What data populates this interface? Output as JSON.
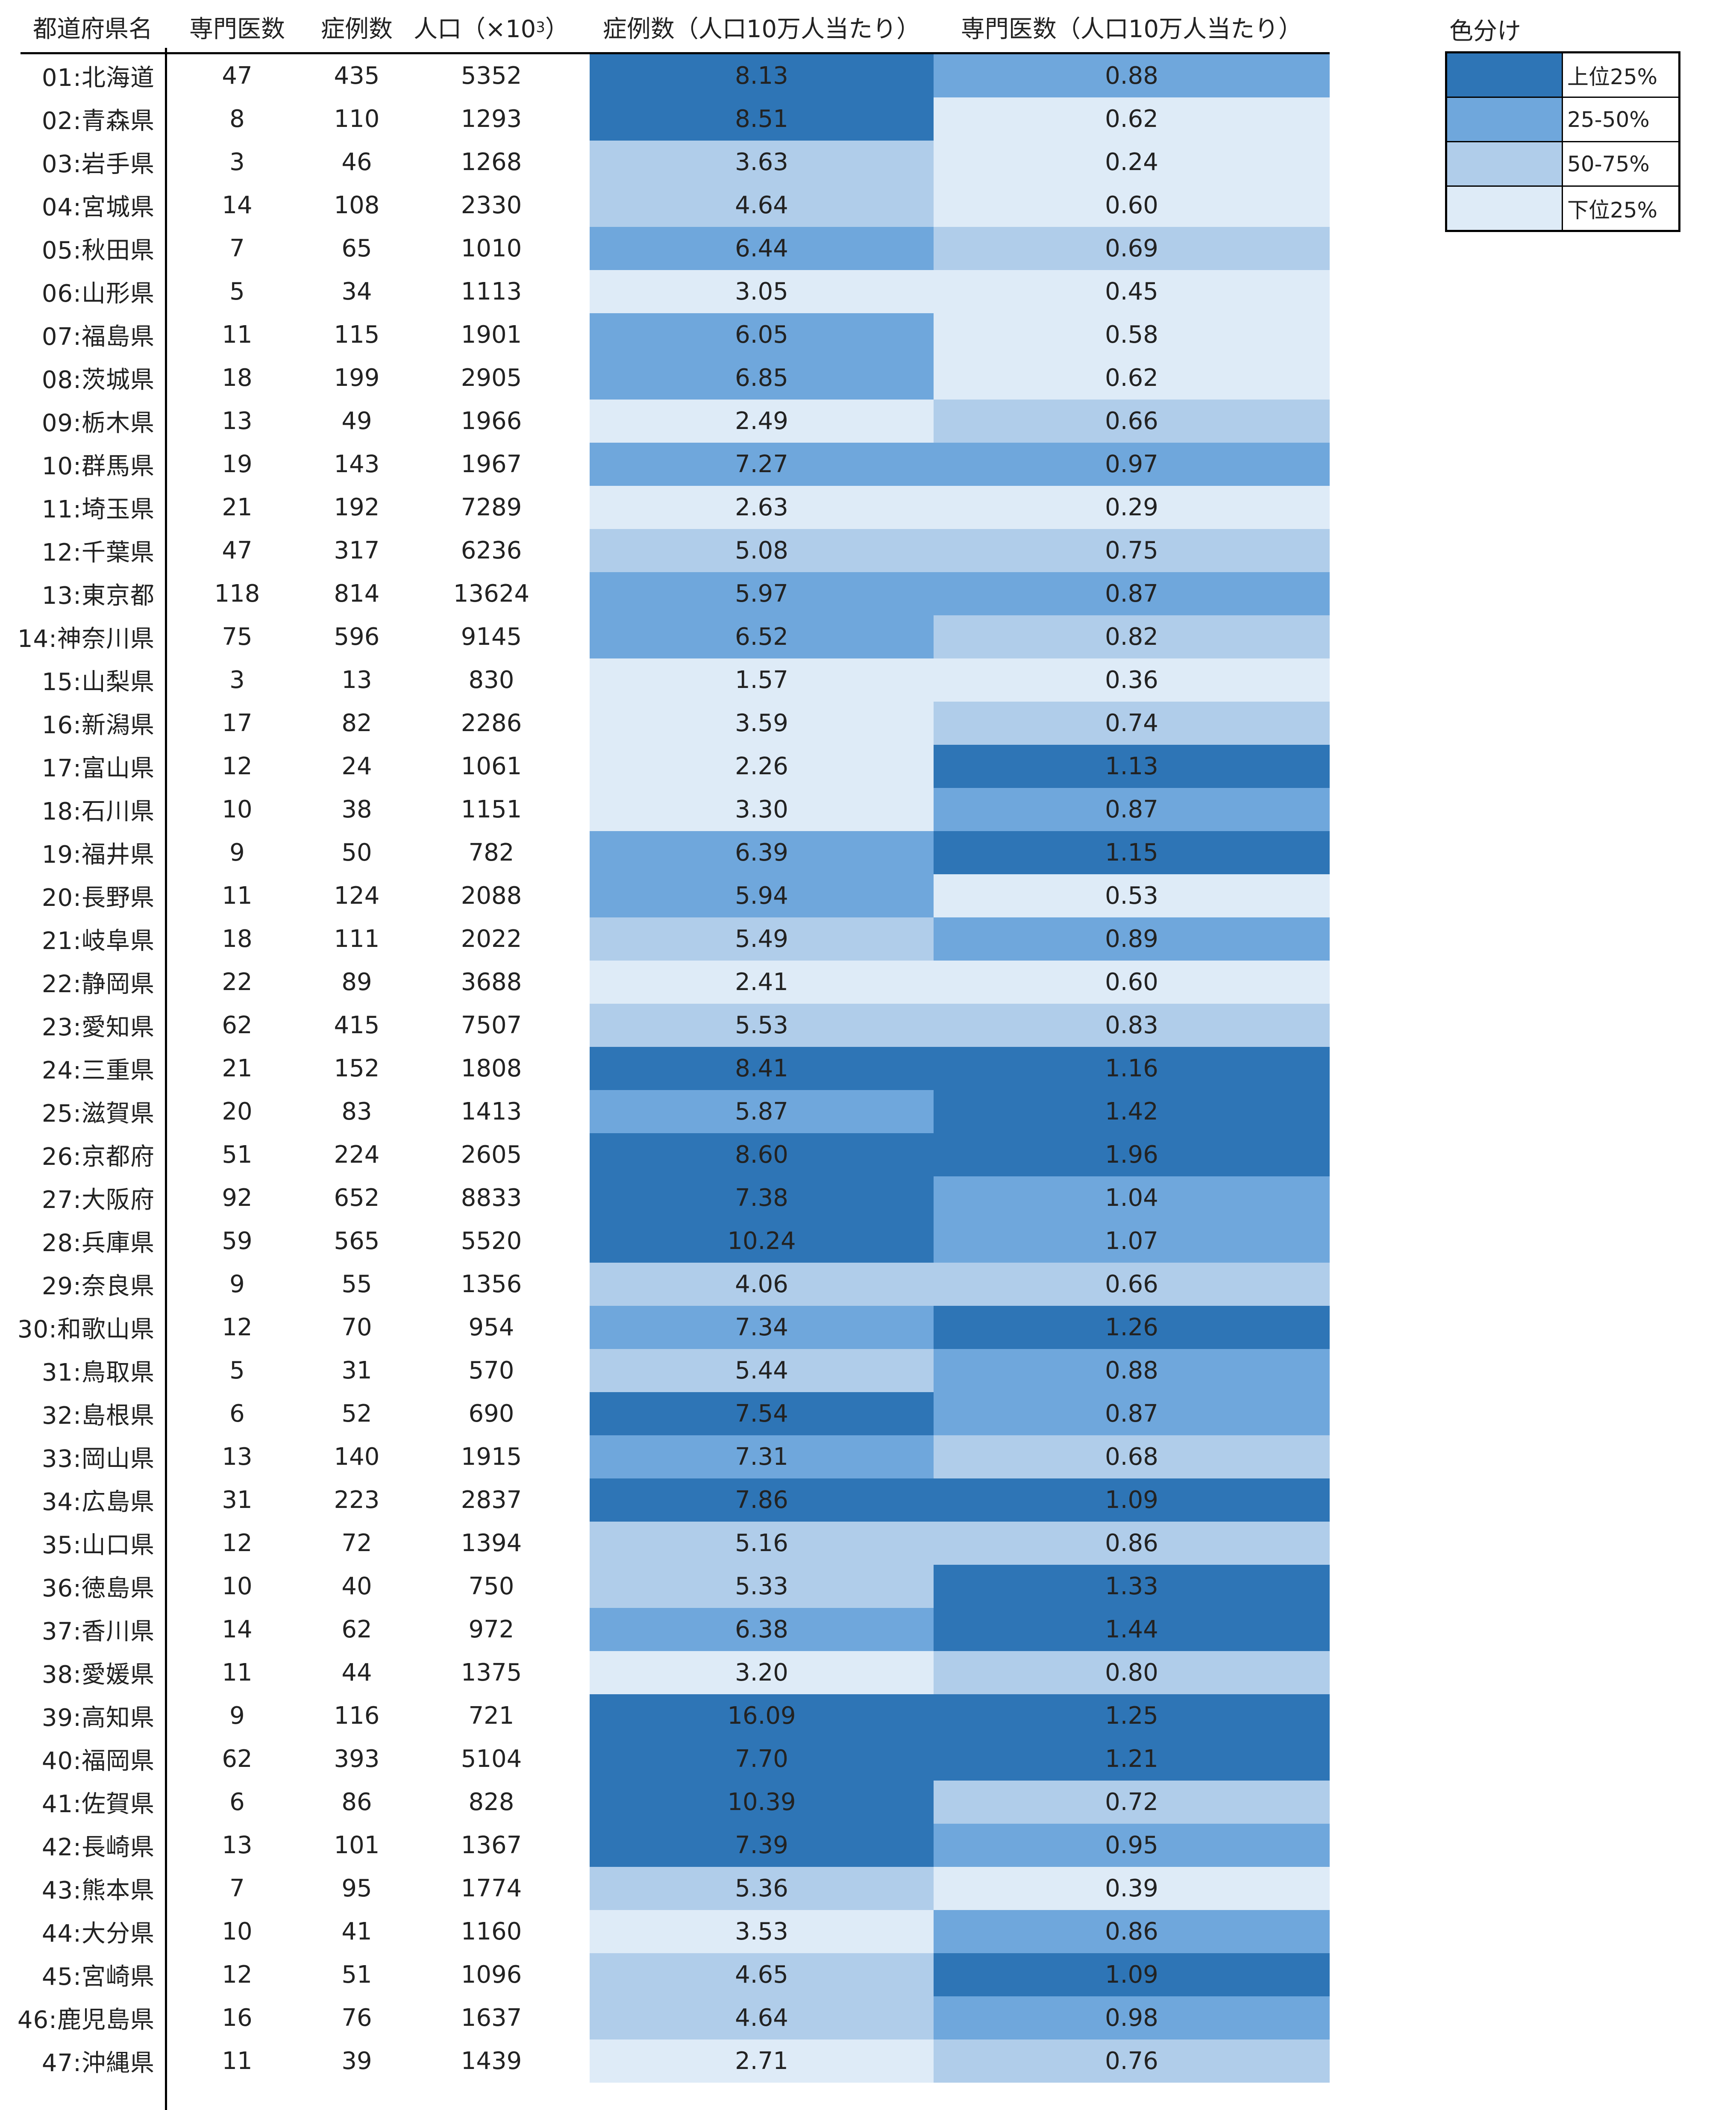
{
  "headers": {
    "name": "都道府県名",
    "specialists": "専門医数",
    "cases": "症例数",
    "population": "人口（×10",
    "population_sup": "3",
    "population_close": "）",
    "case_rate": "症例数（人口10万人当たり）",
    "spec_rate": "専門医数（人口10万人当たり）"
  },
  "colors": {
    "q1": "#2e75b6",
    "q2": "#6fa7dc",
    "q3": "#b0cdea",
    "q4": "#deebf7"
  },
  "legend": {
    "title": "色分け",
    "items": [
      {
        "label": "上位25%",
        "color_key": "q1"
      },
      {
        "label": "25-50%",
        "color_key": "q2"
      },
      {
        "label": "50-75%",
        "color_key": "q3"
      },
      {
        "label": "下位25%",
        "color_key": "q4"
      }
    ]
  },
  "rows": [
    {
      "name": "01:北海道",
      "specialists": "47",
      "cases": "435",
      "population": "5352",
      "case_rate": "8.13",
      "case_q": "q1",
      "spec_rate": "0.88",
      "spec_q": "q2"
    },
    {
      "name": "02:青森県",
      "specialists": "8",
      "cases": "110",
      "population": "1293",
      "case_rate": "8.51",
      "case_q": "q1",
      "spec_rate": "0.62",
      "spec_q": "q4"
    },
    {
      "name": "03:岩手県",
      "specialists": "3",
      "cases": "46",
      "population": "1268",
      "case_rate": "3.63",
      "case_q": "q3",
      "spec_rate": "0.24",
      "spec_q": "q4"
    },
    {
      "name": "04:宮城県",
      "specialists": "14",
      "cases": "108",
      "population": "2330",
      "case_rate": "4.64",
      "case_q": "q3",
      "spec_rate": "0.60",
      "spec_q": "q4"
    },
    {
      "name": "05:秋田県",
      "specialists": "7",
      "cases": "65",
      "population": "1010",
      "case_rate": "6.44",
      "case_q": "q2",
      "spec_rate": "0.69",
      "spec_q": "q3"
    },
    {
      "name": "06:山形県",
      "specialists": "5",
      "cases": "34",
      "population": "1113",
      "case_rate": "3.05",
      "case_q": "q4",
      "spec_rate": "0.45",
      "spec_q": "q4"
    },
    {
      "name": "07:福島県",
      "specialists": "11",
      "cases": "115",
      "population": "1901",
      "case_rate": "6.05",
      "case_q": "q2",
      "spec_rate": "0.58",
      "spec_q": "q4"
    },
    {
      "name": "08:茨城県",
      "specialists": "18",
      "cases": "199",
      "population": "2905",
      "case_rate": "6.85",
      "case_q": "q2",
      "spec_rate": "0.62",
      "spec_q": "q4"
    },
    {
      "name": "09:栃木県",
      "specialists": "13",
      "cases": "49",
      "population": "1966",
      "case_rate": "2.49",
      "case_q": "q4",
      "spec_rate": "0.66",
      "spec_q": "q3"
    },
    {
      "name": "10:群馬県",
      "specialists": "19",
      "cases": "143",
      "population": "1967",
      "case_rate": "7.27",
      "case_q": "q2",
      "spec_rate": "0.97",
      "spec_q": "q2"
    },
    {
      "name": "11:埼玉県",
      "specialists": "21",
      "cases": "192",
      "population": "7289",
      "case_rate": "2.63",
      "case_q": "q4",
      "spec_rate": "0.29",
      "spec_q": "q4"
    },
    {
      "name": "12:千葉県",
      "specialists": "47",
      "cases": "317",
      "population": "6236",
      "case_rate": "5.08",
      "case_q": "q3",
      "spec_rate": "0.75",
      "spec_q": "q3"
    },
    {
      "name": "13:東京都",
      "specialists": "118",
      "cases": "814",
      "population": "13624",
      "case_rate": "5.97",
      "case_q": "q2",
      "spec_rate": "0.87",
      "spec_q": "q2"
    },
    {
      "name": "14:神奈川県",
      "specialists": "75",
      "cases": "596",
      "population": "9145",
      "case_rate": "6.52",
      "case_q": "q2",
      "spec_rate": "0.82",
      "spec_q": "q3"
    },
    {
      "name": "15:山梨県",
      "specialists": "3",
      "cases": "13",
      "population": "830",
      "case_rate": "1.57",
      "case_q": "q4",
      "spec_rate": "0.36",
      "spec_q": "q4"
    },
    {
      "name": "16:新潟県",
      "specialists": "17",
      "cases": "82",
      "population": "2286",
      "case_rate": "3.59",
      "case_q": "q4",
      "spec_rate": "0.74",
      "spec_q": "q3"
    },
    {
      "name": "17:富山県",
      "specialists": "12",
      "cases": "24",
      "population": "1061",
      "case_rate": "2.26",
      "case_q": "q4",
      "spec_rate": "1.13",
      "spec_q": "q1"
    },
    {
      "name": "18:石川県",
      "specialists": "10",
      "cases": "38",
      "population": "1151",
      "case_rate": "3.30",
      "case_q": "q4",
      "spec_rate": "0.87",
      "spec_q": "q2"
    },
    {
      "name": "19:福井県",
      "specialists": "9",
      "cases": "50",
      "population": "782",
      "case_rate": "6.39",
      "case_q": "q2",
      "spec_rate": "1.15",
      "spec_q": "q1"
    },
    {
      "name": "20:長野県",
      "specialists": "11",
      "cases": "124",
      "population": "2088",
      "case_rate": "5.94",
      "case_q": "q2",
      "spec_rate": "0.53",
      "spec_q": "q4"
    },
    {
      "name": "21:岐阜県",
      "specialists": "18",
      "cases": "111",
      "population": "2022",
      "case_rate": "5.49",
      "case_q": "q3",
      "spec_rate": "0.89",
      "spec_q": "q2"
    },
    {
      "name": "22:静岡県",
      "specialists": "22",
      "cases": "89",
      "population": "3688",
      "case_rate": "2.41",
      "case_q": "q4",
      "spec_rate": "0.60",
      "spec_q": "q4"
    },
    {
      "name": "23:愛知県",
      "specialists": "62",
      "cases": "415",
      "population": "7507",
      "case_rate": "5.53",
      "case_q": "q3",
      "spec_rate": "0.83",
      "spec_q": "q3"
    },
    {
      "name": "24:三重県",
      "specialists": "21",
      "cases": "152",
      "population": "1808",
      "case_rate": "8.41",
      "case_q": "q1",
      "spec_rate": "1.16",
      "spec_q": "q1"
    },
    {
      "name": "25:滋賀県",
      "specialists": "20",
      "cases": "83",
      "population": "1413",
      "case_rate": "5.87",
      "case_q": "q2",
      "spec_rate": "1.42",
      "spec_q": "q1"
    },
    {
      "name": "26:京都府",
      "specialists": "51",
      "cases": "224",
      "population": "2605",
      "case_rate": "8.60",
      "case_q": "q1",
      "spec_rate": "1.96",
      "spec_q": "q1"
    },
    {
      "name": "27:大阪府",
      "specialists": "92",
      "cases": "652",
      "population": "8833",
      "case_rate": "7.38",
      "case_q": "q1",
      "spec_rate": "1.04",
      "spec_q": "q2"
    },
    {
      "name": "28:兵庫県",
      "specialists": "59",
      "cases": "565",
      "population": "5520",
      "case_rate": "10.24",
      "case_q": "q1",
      "spec_rate": "1.07",
      "spec_q": "q2"
    },
    {
      "name": "29:奈良県",
      "specialists": "9",
      "cases": "55",
      "population": "1356",
      "case_rate": "4.06",
      "case_q": "q3",
      "spec_rate": "0.66",
      "spec_q": "q3"
    },
    {
      "name": "30:和歌山県",
      "specialists": "12",
      "cases": "70",
      "population": "954",
      "case_rate": "7.34",
      "case_q": "q2",
      "spec_rate": "1.26",
      "spec_q": "q1"
    },
    {
      "name": "31:鳥取県",
      "specialists": "5",
      "cases": "31",
      "population": "570",
      "case_rate": "5.44",
      "case_q": "q3",
      "spec_rate": "0.88",
      "spec_q": "q2"
    },
    {
      "name": "32:島根県",
      "specialists": "6",
      "cases": "52",
      "population": "690",
      "case_rate": "7.54",
      "case_q": "q1",
      "spec_rate": "0.87",
      "spec_q": "q2"
    },
    {
      "name": "33:岡山県",
      "specialists": "13",
      "cases": "140",
      "population": "1915",
      "case_rate": "7.31",
      "case_q": "q2",
      "spec_rate": "0.68",
      "spec_q": "q3"
    },
    {
      "name": "34:広島県",
      "specialists": "31",
      "cases": "223",
      "population": "2837",
      "case_rate": "7.86",
      "case_q": "q1",
      "spec_rate": "1.09",
      "spec_q": "q1"
    },
    {
      "name": "35:山口県",
      "specialists": "12",
      "cases": "72",
      "population": "1394",
      "case_rate": "5.16",
      "case_q": "q3",
      "spec_rate": "0.86",
      "spec_q": "q3"
    },
    {
      "name": "36:徳島県",
      "specialists": "10",
      "cases": "40",
      "population": "750",
      "case_rate": "5.33",
      "case_q": "q3",
      "spec_rate": "1.33",
      "spec_q": "q1"
    },
    {
      "name": "37:香川県",
      "specialists": "14",
      "cases": "62",
      "population": "972",
      "case_rate": "6.38",
      "case_q": "q2",
      "spec_rate": "1.44",
      "spec_q": "q1"
    },
    {
      "name": "38:愛媛県",
      "specialists": "11",
      "cases": "44",
      "population": "1375",
      "case_rate": "3.20",
      "case_q": "q4",
      "spec_rate": "0.80",
      "spec_q": "q3"
    },
    {
      "name": "39:高知県",
      "specialists": "9",
      "cases": "116",
      "population": "721",
      "case_rate": "16.09",
      "case_q": "q1",
      "spec_rate": "1.25",
      "spec_q": "q1"
    },
    {
      "name": "40:福岡県",
      "specialists": "62",
      "cases": "393",
      "population": "5104",
      "case_rate": "7.70",
      "case_q": "q1",
      "spec_rate": "1.21",
      "spec_q": "q1"
    },
    {
      "name": "41:佐賀県",
      "specialists": "6",
      "cases": "86",
      "population": "828",
      "case_rate": "10.39",
      "case_q": "q1",
      "spec_rate": "0.72",
      "spec_q": "q3"
    },
    {
      "name": "42:長崎県",
      "specialists": "13",
      "cases": "101",
      "population": "1367",
      "case_rate": "7.39",
      "case_q": "q1",
      "spec_rate": "0.95",
      "spec_q": "q2"
    },
    {
      "name": "43:熊本県",
      "specialists": "7",
      "cases": "95",
      "population": "1774",
      "case_rate": "5.36",
      "case_q": "q3",
      "spec_rate": "0.39",
      "spec_q": "q4"
    },
    {
      "name": "44:大分県",
      "specialists": "10",
      "cases": "41",
      "population": "1160",
      "case_rate": "3.53",
      "case_q": "q4",
      "spec_rate": "0.86",
      "spec_q": "q2"
    },
    {
      "name": "45:宮崎県",
      "specialists": "12",
      "cases": "51",
      "population": "1096",
      "case_rate": "4.65",
      "case_q": "q3",
      "spec_rate": "1.09",
      "spec_q": "q1"
    },
    {
      "name": "46:鹿児島県",
      "specialists": "16",
      "cases": "76",
      "population": "1637",
      "case_rate": "4.64",
      "case_q": "q3",
      "spec_rate": "0.98",
      "spec_q": "q2"
    },
    {
      "name": "47:沖縄県",
      "specialists": "11",
      "cases": "39",
      "population": "1439",
      "case_rate": "2.71",
      "case_q": "q4",
      "spec_rate": "0.76",
      "spec_q": "q3"
    }
  ]
}
